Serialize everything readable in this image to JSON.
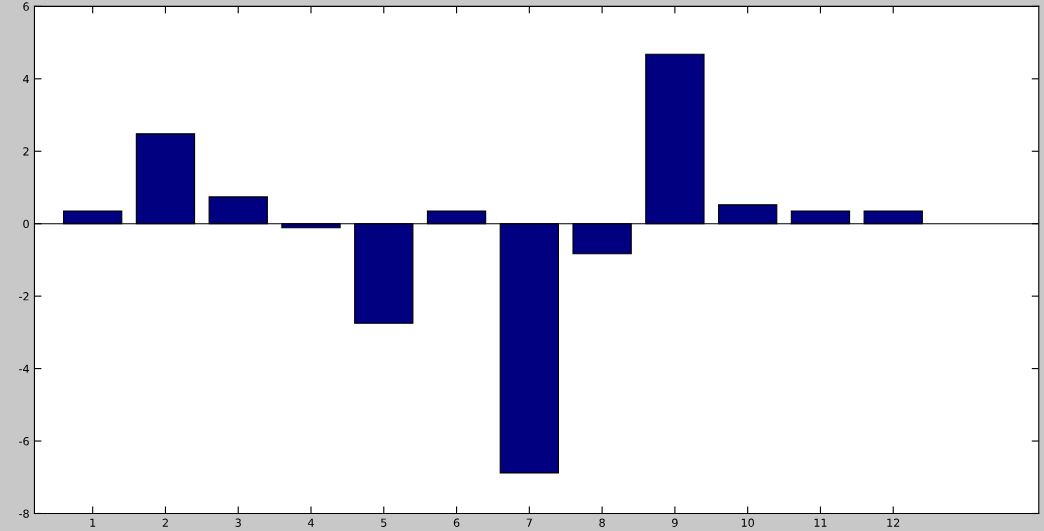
{
  "chart_data": {
    "type": "bar",
    "x": [
      1,
      2,
      3,
      4,
      5,
      6,
      7,
      8,
      9,
      10,
      11,
      12
    ],
    "values": [
      0.35,
      2.48,
      0.74,
      -0.11,
      -2.75,
      0.35,
      -6.88,
      -0.83,
      4.68,
      0.52,
      0.35,
      0.35
    ],
    "color": "#000080",
    "xlim": [
      0.2,
      14
    ],
    "xticks": [
      1,
      2,
      3,
      4,
      5,
      6,
      7,
      8,
      9,
      10,
      11,
      12
    ],
    "ylim": [
      -8,
      6
    ],
    "yticks": [
      -8,
      -6,
      -4,
      -2,
      0,
      2,
      4,
      6
    ],
    "ref_lines": [
      {
        "axis": "y",
        "value": 0,
        "color": "#000000"
      }
    ]
  }
}
